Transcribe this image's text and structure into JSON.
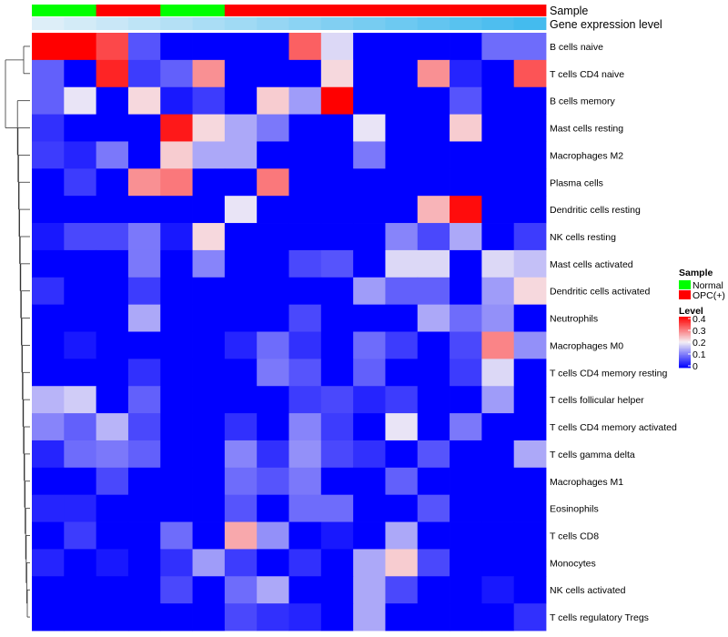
{
  "chart_data": {
    "type": "heatmap",
    "annotation_tracks": [
      {
        "name": "Sample",
        "values": [
          "Normal",
          "Normal",
          "OPC(+)",
          "OPC(+)",
          "Normal",
          "Normal",
          "OPC(+)",
          "OPC(+)",
          "OPC(+)",
          "OPC(+)",
          "OPC(+)",
          "OPC(+)",
          "OPC(+)",
          "OPC(+)",
          "OPC(+)",
          "OPC(+)"
        ]
      },
      {
        "name": "Gene expression level",
        "values": [
          1,
          2,
          3,
          4,
          5,
          6,
          7,
          8,
          9,
          10,
          11,
          12,
          13,
          14,
          15,
          16
        ]
      }
    ],
    "rows": [
      "B cells naive",
      "T cells CD4 naive",
      "B cells memory",
      "Mast cells resting",
      "Macrophages M2",
      "Plasma cells",
      "Dendritic cells resting",
      "NK cells resting",
      "Mast cells activated",
      "Dendritic cells activated",
      "Neutrophils",
      "Macrophages M0",
      "T cells CD4 memory resting",
      "T cells follicular helper",
      "T cells CD4 memory activated",
      "T cells gamma delta",
      "Macrophages M1",
      "Eosinophils",
      "T cells CD8",
      "Monocytes",
      "NK cells activated",
      "T cells regulatory  Tregs"
    ],
    "values": [
      [
        0.4,
        0.4,
        0.34,
        0.07,
        0,
        0,
        0,
        0,
        0.32,
        0.18,
        0,
        0,
        0,
        0,
        0.09,
        0.09
      ],
      [
        0.08,
        0,
        0.37,
        0.05,
        0.08,
        0.28,
        0,
        0,
        0,
        0.22,
        0,
        0,
        0.28,
        0.03,
        0,
        0.33
      ],
      [
        0.08,
        0.19,
        0,
        0.22,
        0.02,
        0.05,
        0,
        0.23,
        0.13,
        0.4,
        0,
        0,
        0,
        0.07,
        0,
        0
      ],
      [
        0.04,
        0,
        0,
        0,
        0.38,
        0.22,
        0.14,
        0.1,
        0,
        0,
        0.19,
        0,
        0,
        0.23,
        0,
        0
      ],
      [
        0.05,
        0.03,
        0.1,
        0,
        0.23,
        0.14,
        0.14,
        0,
        0,
        0,
        0.1,
        0,
        0,
        0,
        0,
        0
      ],
      [
        0,
        0.05,
        0,
        0.28,
        0.3,
        0,
        0,
        0.3,
        0,
        0,
        0,
        0,
        0,
        0,
        0,
        0
      ],
      [
        0,
        0,
        0,
        0,
        0,
        0,
        0.19,
        0,
        0,
        0,
        0,
        0,
        0.25,
        0.39,
        0,
        0
      ],
      [
        0.02,
        0.06,
        0.06,
        0.1,
        0.02,
        0.22,
        0,
        0,
        0,
        0,
        0,
        0.11,
        0.06,
        0.14,
        0,
        0.05
      ],
      [
        0,
        0,
        0,
        0.1,
        0,
        0.11,
        0,
        0,
        0.06,
        0.07,
        0,
        0.18,
        0.18,
        0,
        0.18,
        0.16
      ],
      [
        0.04,
        0,
        0,
        0.05,
        0,
        0,
        0,
        0,
        0,
        0,
        0.13,
        0.08,
        0.08,
        0,
        0.13,
        0.22
      ],
      [
        0,
        0,
        0,
        0.14,
        0,
        0,
        0,
        0,
        0.06,
        0,
        0,
        0,
        0.14,
        0.09,
        0.12,
        0
      ],
      [
        0,
        0.02,
        0,
        0,
        0,
        0,
        0.03,
        0.09,
        0.04,
        0,
        0.09,
        0.05,
        0,
        0.06,
        0.29,
        0.12
      ],
      [
        0,
        0,
        0,
        0.04,
        0,
        0,
        0,
        0.1,
        0.07,
        0,
        0.08,
        0,
        0,
        0.05,
        0.18,
        0
      ],
      [
        0.15,
        0.17,
        0,
        0.08,
        0,
        0,
        0,
        0,
        0.05,
        0.06,
        0.03,
        0.05,
        0,
        0,
        0.13,
        0
      ],
      [
        0.11,
        0.08,
        0.15,
        0.06,
        0,
        0,
        0.04,
        0,
        0.11,
        0.05,
        0,
        0.19,
        0,
        0.1,
        0,
        0
      ],
      [
        0.03,
        0.09,
        0.1,
        0.08,
        0,
        0,
        0.11,
        0.04,
        0.12,
        0.06,
        0.04,
        0,
        0.07,
        0,
        0,
        0.14
      ],
      [
        0,
        0,
        0.06,
        0,
        0,
        0,
        0.09,
        0.07,
        0.1,
        0,
        0,
        0.08,
        0,
        0,
        0,
        0
      ],
      [
        0.03,
        0.03,
        0,
        0,
        0,
        0,
        0.07,
        0,
        0.09,
        0.09,
        0,
        0,
        0.07,
        0,
        0,
        0
      ],
      [
        0,
        0.05,
        0,
        0,
        0.09,
        0,
        0.26,
        0.12,
        0,
        0.02,
        0,
        0.14,
        0,
        0,
        0,
        0
      ],
      [
        0.03,
        0,
        0.02,
        0,
        0.04,
        0.13,
        0.05,
        0,
        0.04,
        0,
        0.14,
        0.23,
        0.06,
        0,
        0,
        0
      ],
      [
        0,
        0,
        0,
        0,
        0.06,
        0,
        0.09,
        0.14,
        0,
        0,
        0.14,
        0.06,
        0,
        0,
        0.02,
        0
      ],
      [
        0,
        0,
        0,
        0,
        0,
        0,
        0.06,
        0.04,
        0.03,
        0,
        0.14,
        0,
        0,
        0,
        0,
        0.04
      ]
    ],
    "color_scale": {
      "min": 0,
      "max": 0.4,
      "low": "#0000ff",
      "mid": "#f5f0f5",
      "high": "#ff0000"
    },
    "legends": [
      {
        "title": "Sample",
        "entries": [
          {
            "label": "Normal",
            "color": "#00ff00"
          },
          {
            "label": "OPC(+)",
            "color": "#ff0000"
          }
        ]
      },
      {
        "title": "Level",
        "ticks": [
          "0.4",
          "0.3",
          "0.2",
          "0.1",
          "0"
        ]
      }
    ],
    "annotation_colors": {
      "Normal": "#00ff00",
      "OPC(+)": "#ff0000",
      "gene_low": "#ddeef8",
      "gene_high": "#44bbee"
    },
    "dendrogram": "row-clustering"
  }
}
